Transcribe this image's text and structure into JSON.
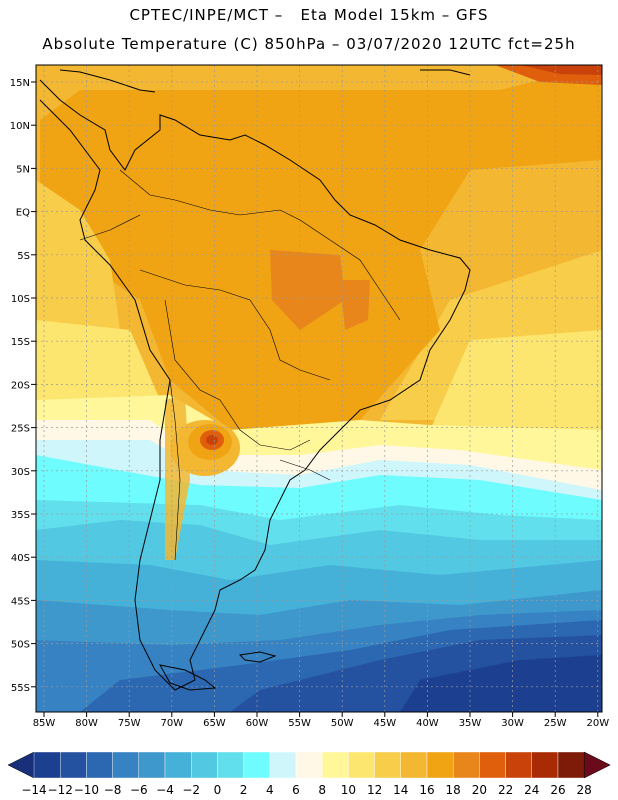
{
  "header": {
    "line1": "CPTEC/INPE/MCT –   Eta Model 15km – GFS",
    "line2": "Absolute Temperature (C) 850hPa – 03/07/2020 12UTC fct=25h"
  },
  "map": {
    "lat_labels": [
      "15N",
      "10N",
      "5N",
      "EQ",
      "5S",
      "10S",
      "15S",
      "20S",
      "25S",
      "30S",
      "35S",
      "40S",
      "45S",
      "50S",
      "55S"
    ],
    "lon_labels": [
      "85W",
      "80W",
      "75W",
      "70W",
      "65W",
      "60W",
      "55W",
      "50W",
      "45W",
      "40W",
      "35W",
      "30W",
      "25W",
      "20W"
    ]
  },
  "colorbar": {
    "colors": [
      "#1d3f8f",
      "#2452a0",
      "#2c68b2",
      "#3782c2",
      "#3f98cc",
      "#45b1d8",
      "#52c8e2",
      "#62dfec",
      "#6ffcff",
      "#cff6fb",
      "#fff8e6",
      "#fff79a",
      "#fde66f",
      "#f7cd4a",
      "#f3b732",
      "#f0a414",
      "#e8861b",
      "#e05f0c",
      "#c8420a",
      "#a82b06",
      "#7e1a08"
    ],
    "end_low": "#1a2f7a",
    "end_high": "#6a0a1a",
    "labels": [
      "-14",
      "-12",
      "-10",
      "-8",
      "-6",
      "-4",
      "-2",
      "0",
      "2",
      "4",
      "6",
      "8",
      "10",
      "12",
      "14",
      "16",
      "18",
      "20",
      "22",
      "24",
      "26",
      "28"
    ]
  }
}
